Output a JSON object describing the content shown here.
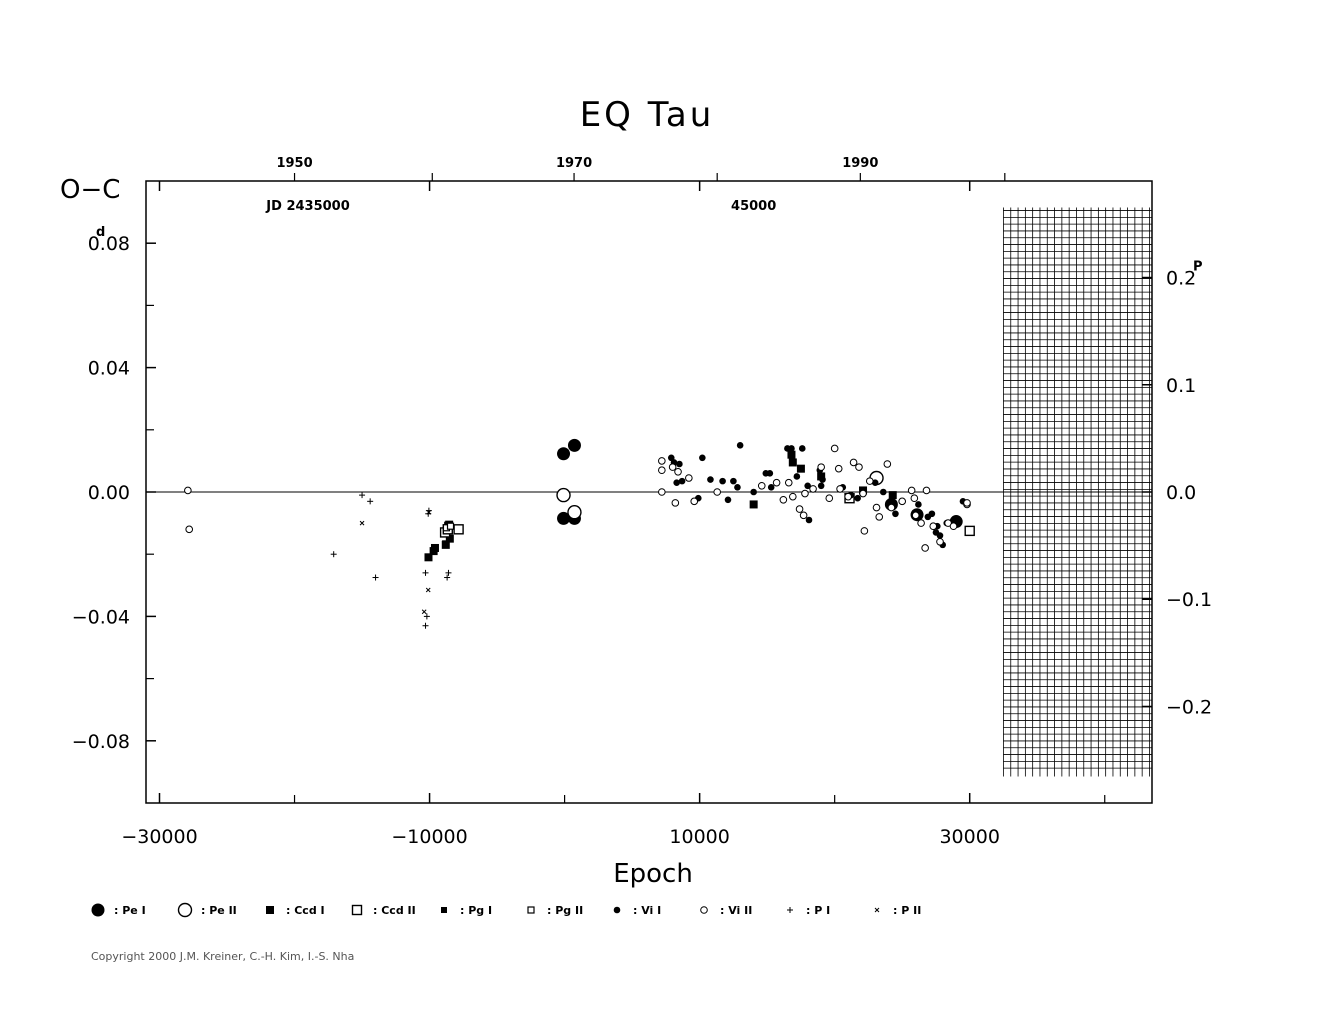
{
  "chart_data": {
    "type": "scatter",
    "title": "EQ Tau",
    "xlabel": "Epoch",
    "ylabel": "O−C",
    "y_unit_superscript": "d",
    "y2_unit_superscript": "P",
    "top_axis_label": "JD 2435000",
    "top_axis_mid_label": "45000",
    "xlim": [
      -31000,
      43500
    ],
    "ylim": [
      -0.1,
      0.1
    ],
    "y2lim": [
      -0.29,
      0.29
    ],
    "x_ticks": [
      {
        "value": -30000,
        "label": "−30000"
      },
      {
        "value": -10000,
        "label": "−10000"
      },
      {
        "value": 10000,
        "label": "10000"
      },
      {
        "value": 30000,
        "label": "30000"
      }
    ],
    "x_minor_ticks": [
      -20000,
      0,
      20000,
      40000
    ],
    "y_ticks": [
      {
        "value": 0.08,
        "label": "0.08"
      },
      {
        "value": 0.04,
        "label": "0.04"
      },
      {
        "value": 0.0,
        "label": "0.00"
      },
      {
        "value": -0.04,
        "label": "−0.04"
      },
      {
        "value": -0.08,
        "label": "−0.08"
      }
    ],
    "y_minor_ticks": [
      0.06,
      0.02,
      -0.02,
      -0.06
    ],
    "y2_ticks": [
      {
        "value": 0.2,
        "label": "0.2"
      },
      {
        "value": 0.1,
        "label": "0.1"
      },
      {
        "value": 0.0,
        "label": "0.0"
      },
      {
        "value": -0.1,
        "label": "−0.1"
      },
      {
        "value": -0.2,
        "label": "−0.2"
      }
    ],
    "top_ticks": [
      {
        "value": -20000,
        "label": "1950"
      },
      {
        "value": 700,
        "label": "1970"
      },
      {
        "value": 21900,
        "label": "1990"
      }
    ],
    "top_minor_ticks": [
      -9800,
      11300,
      32600
    ],
    "top_label_positions": {
      "jd": -19000,
      "mid": 14000
    },
    "hatch_region_x": [
      32500,
      43500
    ],
    "hatch_region_y": [
      -0.0905,
      0.0905
    ],
    "legend": [
      {
        "key": "Pe_I",
        "label": ": Pe  I"
      },
      {
        "key": "Pe_II",
        "label": ": Pe  II"
      },
      {
        "key": "Ccd_I",
        "label": ": Ccd  I"
      },
      {
        "key": "Ccd_II",
        "label": ": Ccd  II"
      },
      {
        "key": "Pg_I",
        "label": ": Pg  I"
      },
      {
        "key": "Pg_II",
        "label": ": Pg  II"
      },
      {
        "key": "Vi_I",
        "label": ": Vi  I"
      },
      {
        "key": "Vi_II",
        "label": ": Vi  II"
      },
      {
        "key": "P_I",
        "label": ": P  I"
      },
      {
        "key": "P_II",
        "label": ": P  II"
      }
    ],
    "series": [
      {
        "key": "Pe_I",
        "points": [
          [
            -80,
            0.0123
          ],
          [
            -80,
            -0.0085
          ],
          [
            730,
            0.015
          ],
          [
            730,
            -0.0085
          ],
          [
            24200,
            -0.004
          ],
          [
            26100,
            -0.0073
          ],
          [
            29000,
            -0.0095
          ]
        ]
      },
      {
        "key": "Pe_II",
        "points": [
          [
            -80,
            -0.001
          ],
          [
            730,
            -0.0065
          ],
          [
            23100,
            0.0045
          ]
        ]
      },
      {
        "key": "Ccd_I",
        "points": [
          [
            -10080,
            -0.021
          ],
          [
            -9700,
            -0.019
          ],
          [
            -9600,
            -0.018
          ],
          [
            -8800,
            -0.017
          ],
          [
            -8500,
            -0.015
          ],
          [
            -8550,
            -0.0105
          ],
          [
            16800,
            0.012
          ],
          [
            16900,
            0.0095
          ],
          [
            17500,
            0.0075
          ],
          [
            19000,
            0.005
          ],
          [
            22100,
            0.0005
          ],
          [
            24300,
            -0.001
          ],
          [
            14000,
            -0.004
          ]
        ]
      },
      {
        "key": "Ccd_II",
        "points": [
          [
            -8850,
            -0.013
          ],
          [
            -7850,
            -0.012
          ],
          [
            -8650,
            -0.012
          ],
          [
            21100,
            -0.002
          ],
          [
            30000,
            -0.0125
          ]
        ]
      },
      {
        "key": "Pg_I",
        "points": [
          [
            -8700,
            -0.0105
          ],
          [
            -8600,
            -0.011
          ],
          [
            -8850,
            -0.0165
          ]
        ]
      },
      {
        "key": "Pg_II",
        "points": [
          [
            -8750,
            -0.0115
          ],
          [
            -8450,
            -0.011
          ]
        ]
      },
      {
        "key": "Vi_I",
        "points": [
          [
            7900,
            0.011
          ],
          [
            8100,
            0.0095
          ],
          [
            8500,
            0.009
          ],
          [
            8300,
            0.003
          ],
          [
            8700,
            0.0035
          ],
          [
            9900,
            -0.002
          ],
          [
            10200,
            0.011
          ],
          [
            10800,
            0.004
          ],
          [
            11700,
            0.0035
          ],
          [
            12100,
            -0.0025
          ],
          [
            12500,
            0.0035
          ],
          [
            12800,
            0.0015
          ],
          [
            13000,
            0.015
          ],
          [
            14000,
            0.0
          ],
          [
            14900,
            0.006
          ],
          [
            15200,
            0.006
          ],
          [
            15300,
            0.0015
          ],
          [
            16500,
            0.014
          ],
          [
            16800,
            0.014
          ],
          [
            17200,
            0.005
          ],
          [
            17600,
            0.014
          ],
          [
            18000,
            0.002
          ],
          [
            18100,
            -0.009
          ],
          [
            18900,
            0.007
          ],
          [
            19100,
            0.004
          ],
          [
            19000,
            0.002
          ],
          [
            20600,
            0.0015
          ],
          [
            21200,
            -0.001
          ],
          [
            21700,
            -0.002
          ],
          [
            23000,
            0.003
          ],
          [
            23600,
            0.0
          ],
          [
            24500,
            -0.007
          ],
          [
            26200,
            -0.004
          ],
          [
            27200,
            -0.007
          ],
          [
            27600,
            -0.011
          ],
          [
            28300,
            -0.01
          ],
          [
            28900,
            -0.0095
          ],
          [
            29500,
            -0.003
          ],
          [
            27800,
            -0.014
          ],
          [
            29100,
            -0.01
          ],
          [
            27500,
            -0.013
          ],
          [
            26900,
            -0.008
          ],
          [
            28000,
            -0.017
          ]
        ]
      },
      {
        "key": "Vi_II",
        "points": [
          [
            7200,
            0.01
          ],
          [
            7200,
            0.007
          ],
          [
            7200,
            0.0
          ],
          [
            8000,
            0.008
          ],
          [
            8400,
            0.0065
          ],
          [
            8200,
            -0.0035
          ],
          [
            9200,
            0.0045
          ],
          [
            9600,
            -0.003
          ],
          [
            11300,
            0.0
          ],
          [
            14600,
            0.002
          ],
          [
            15700,
            0.003
          ],
          [
            16200,
            -0.0025
          ],
          [
            16600,
            0.003
          ],
          [
            16900,
            -0.0015
          ],
          [
            17400,
            -0.0055
          ],
          [
            17800,
            -0.0005
          ],
          [
            17700,
            -0.0075
          ],
          [
            18400,
            0.001
          ],
          [
            19000,
            0.008
          ],
          [
            19600,
            -0.002
          ],
          [
            20000,
            0.014
          ],
          [
            20300,
            0.0075
          ],
          [
            20400,
            0.001
          ],
          [
            21000,
            -0.0015
          ],
          [
            21400,
            0.0095
          ],
          [
            21800,
            0.008
          ],
          [
            22100,
            -0.0005
          ],
          [
            22200,
            -0.0125
          ],
          [
            22600,
            0.0035
          ],
          [
            23100,
            -0.005
          ],
          [
            23300,
            -0.008
          ],
          [
            23900,
            0.009
          ],
          [
            24200,
            -0.005
          ],
          [
            25000,
            -0.003
          ],
          [
            25700,
            0.0005
          ],
          [
            25900,
            -0.002
          ],
          [
            26000,
            -0.0075
          ],
          [
            26400,
            -0.01
          ],
          [
            26700,
            -0.018
          ],
          [
            26800,
            0.0005
          ],
          [
            27300,
            -0.011
          ],
          [
            27800,
            -0.016
          ],
          [
            28400,
            -0.01
          ],
          [
            28800,
            -0.011
          ],
          [
            29800,
            -0.004
          ],
          [
            29800,
            -0.0035
          ]
        ]
      },
      {
        "key": "P_I",
        "points": [
          [
            -17100,
            -0.02
          ],
          [
            -15000,
            -0.001
          ],
          [
            -14400,
            -0.003
          ],
          [
            -14000,
            -0.0275
          ],
          [
            -10300,
            -0.026
          ],
          [
            -10200,
            -0.04
          ],
          [
            -10300,
            -0.043
          ],
          [
            -10100,
            -0.007
          ],
          [
            -8600,
            -0.026
          ],
          [
            -8700,
            -0.0275
          ],
          [
            -10050,
            -0.006
          ]
        ]
      },
      {
        "key": "P_II",
        "points": [
          [
            -15000,
            -0.01
          ],
          [
            -10100,
            -0.0315
          ],
          [
            -10400,
            -0.0385
          ],
          [
            -10050,
            -0.0065
          ]
        ]
      },
      {
        "key": "other",
        "points": [
          [
            -27900,
            0.0005
          ],
          [
            -27800,
            -0.012
          ]
        ]
      }
    ]
  },
  "copyright": "Copyright 2000 J.M. Kreiner, C.-H. Kim, I.-S. Nha"
}
